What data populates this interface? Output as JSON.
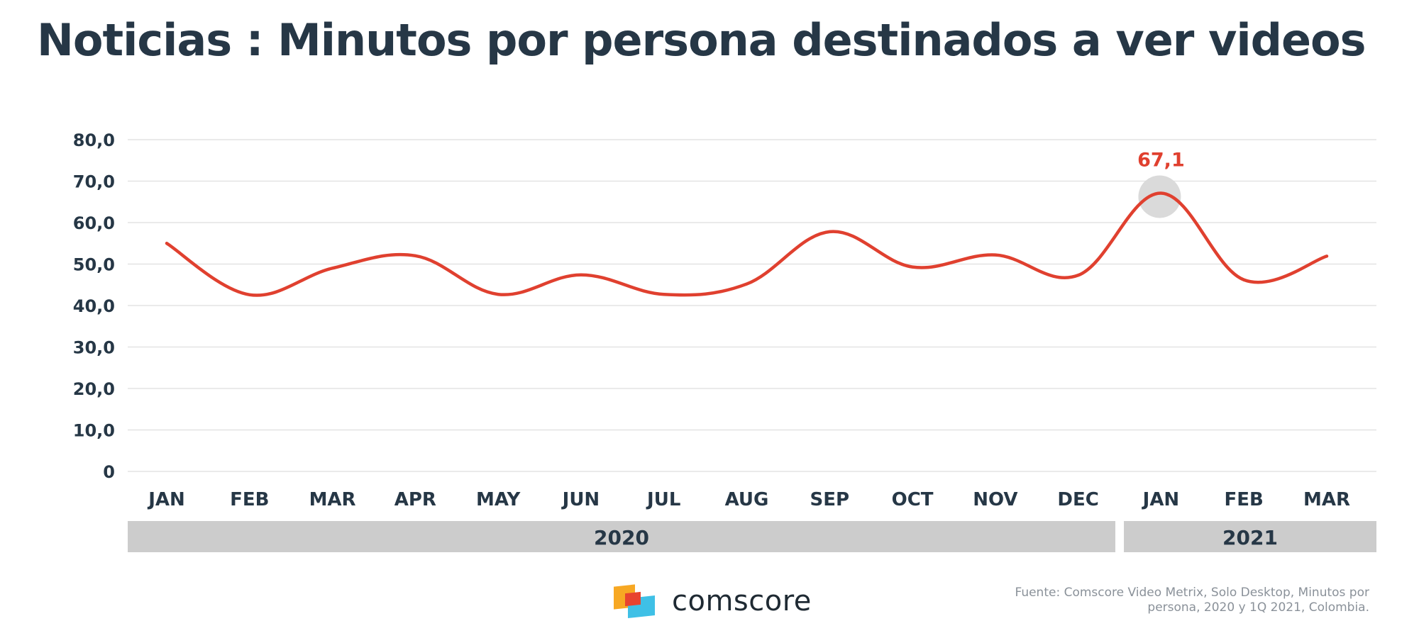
{
  "header": {
    "title": "Noticias : Minutos por persona destinados a ver videos"
  },
  "chart_data": {
    "type": "line",
    "title": "Noticias : Minutos por persona destinados a ver videos",
    "categories": [
      "JAN",
      "FEB",
      "MAR",
      "APR",
      "MAY",
      "JUN",
      "JUL",
      "AUG",
      "SEP",
      "OCT",
      "NOV",
      "DEC",
      "JAN",
      "FEB",
      "MAR"
    ],
    "year_groups": [
      {
        "label": "2020",
        "start": 0,
        "end": 11
      },
      {
        "label": "2021",
        "start": 12,
        "end": 14
      }
    ],
    "series": [
      {
        "values": [
          55.0,
          42.6,
          49.0,
          52.0,
          42.7,
          47.4,
          42.7,
          45.2,
          57.8,
          49.3,
          52.2,
          47.3,
          67.1,
          46.2,
          51.9
        ]
      }
    ],
    "highlight": {
      "index": 12,
      "label": "67,1"
    },
    "ylim": [
      0,
      80
    ],
    "yticks": [
      0,
      10,
      20,
      30,
      40,
      50,
      60,
      70,
      80
    ],
    "ytick_labels": [
      "0",
      "10,0",
      "20,0",
      "30,0",
      "40,0",
      "50,0",
      "60,0",
      "70,0",
      "80,0"
    ],
    "grid": true,
    "legend": "none",
    "xlabel": "",
    "ylabel": ""
  },
  "colors": {
    "line": "#e0402f",
    "highlight_label": "#e0402f",
    "highlight_circle": "#dadada",
    "grid": "#e3e3e3",
    "year_band": "#cccccc",
    "text": "#263746"
  },
  "footer": {
    "brand": "comscore",
    "brand_icon": "comscore-logo-icon",
    "source_line1": "Fuente: Comscore Video Metrix, Solo Desktop, Minutos por",
    "source_line2": "persona, 2020 y 1Q 2021, Colombia."
  }
}
